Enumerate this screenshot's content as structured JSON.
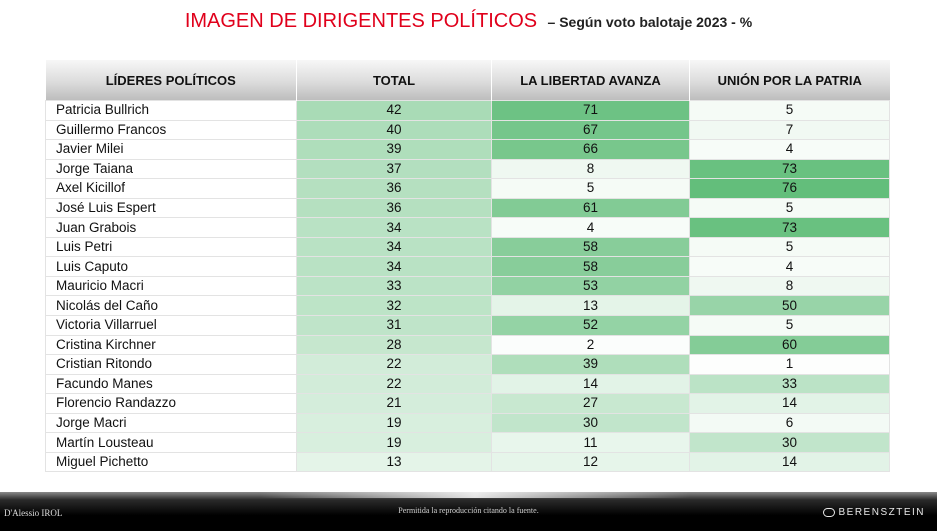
{
  "header": {
    "title": "IMAGEN DE DIRIGENTES POLÍTICOS",
    "subtitle": "– Según voto balotaje 2023 - %"
  },
  "table": {
    "columns": [
      "LÍDERES POLÍTICOS",
      "TOTAL",
      "LA LIBERTAD AVANZA",
      "UNIÓN POR LA PATRIA"
    ],
    "rows": [
      {
        "name": "Patricia Bullrich",
        "total": "42",
        "lla": "71",
        "uxp": "5"
      },
      {
        "name": "Guillermo Francos",
        "total": "40",
        "lla": "67",
        "uxp": "7"
      },
      {
        "name": "Javier Milei",
        "total": "39",
        "lla": "66",
        "uxp": "4"
      },
      {
        "name": "Jorge Taiana",
        "total": "37",
        "lla": "8",
        "uxp": "73"
      },
      {
        "name": "Axel Kicillof",
        "total": "36",
        "lla": "5",
        "uxp": "76"
      },
      {
        "name": "José Luis Espert",
        "total": "36",
        "lla": "61",
        "uxp": "5"
      },
      {
        "name": "Juan Grabois",
        "total": "34",
        "lla": "4",
        "uxp": "73"
      },
      {
        "name": "Luis Petri",
        "total": "34",
        "lla": "58",
        "uxp": "5"
      },
      {
        "name": "Luis Caputo",
        "total": "34",
        "lla": "58",
        "uxp": "4"
      },
      {
        "name": "Mauricio Macri",
        "total": "33",
        "lla": "53",
        "uxp": "8"
      },
      {
        "name": "Nicolás del Caño",
        "total": "32",
        "lla": "13",
        "uxp": "50"
      },
      {
        "name": "Victoria Villarruel",
        "total": "31",
        "lla": "52",
        "uxp": "5"
      },
      {
        "name": "Cristina Kirchner",
        "total": "28",
        "lla": "2",
        "uxp": "60"
      },
      {
        "name": "Cristian Ritondo",
        "total": "22",
        "lla": "39",
        "uxp": "1"
      },
      {
        "name": "Facundo Manes",
        "total": "22",
        "lla": "14",
        "uxp": "33"
      },
      {
        "name": "Florencio Randazzo",
        "total": "21",
        "lla": "27",
        "uxp": "14"
      },
      {
        "name": "Jorge Macri",
        "total": "19",
        "lla": "30",
        "uxp": "6"
      },
      {
        "name": "Martín Lousteau",
        "total": "19",
        "lla": "11",
        "uxp": "30"
      },
      {
        "name": "Miguel Pichetto",
        "total": "13",
        "lla": "12",
        "uxp": "14"
      }
    ]
  },
  "colors": {
    "title": "#e0001b",
    "heat_low": "#ffffff",
    "heat_high": "#63be7b"
  },
  "footer": {
    "left_logo": "D'Alessio IROL",
    "center_note": "Permitida la reproducción citando la fuente.",
    "right_logo": "BERENSZTEIN"
  }
}
